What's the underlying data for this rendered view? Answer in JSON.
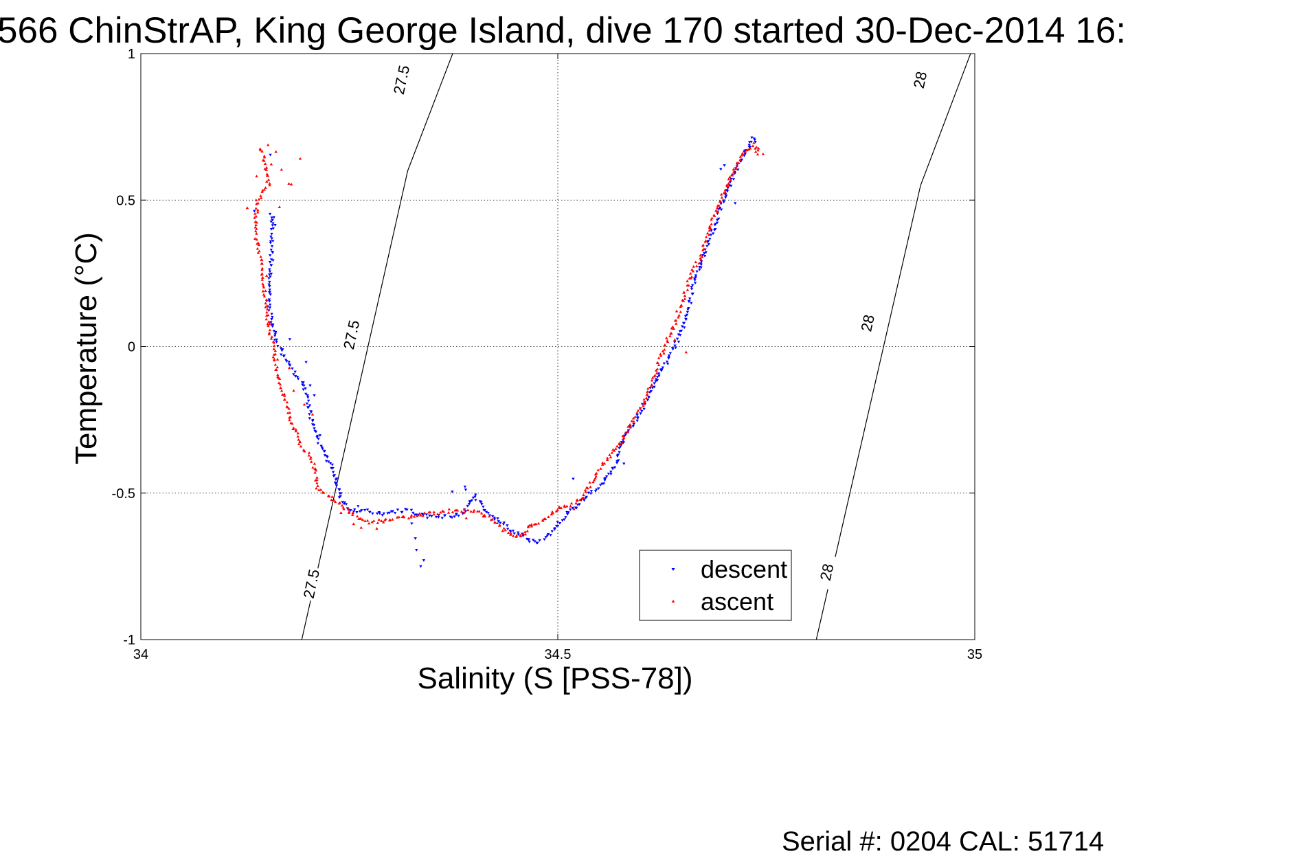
{
  "title": "566 ChinStrAP, King George Island, dive 170 started 30-Dec-2014 16:",
  "footer": "Serial #: 0204  CAL: 51714",
  "chart_data": {
    "type": "scatter",
    "title": "566 ChinStrAP, King George Island, dive 170 started 30-Dec-2014 16:",
    "xlabel": "Salinity (S [PSS-78])",
    "ylabel": "Temperature (°C)",
    "xlim": [
      34,
      35
    ],
    "ylim": [
      -1,
      1
    ],
    "xticks": [
      34,
      34.5,
      35
    ],
    "xtick_labels": [
      "34",
      "34.5",
      "35"
    ],
    "yticks": [
      -1,
      -0.5,
      0,
      0.5,
      1
    ],
    "ytick_labels": [
      "-1",
      "-0.5",
      "0",
      "0.5",
      "1"
    ],
    "grid": true,
    "legend_position": "bottom-right",
    "colors": {
      "descent": "#0000ff",
      "ascent": "#ff0000"
    },
    "contours": [
      {
        "label": "27.5",
        "color": "#000000",
        "points": [
          [
            34.193,
            -1.0
          ],
          [
            34.32,
            0.6
          ],
          [
            34.374,
            1.0
          ]
        ],
        "label_positions": [
          [
            34.205,
            -0.81
          ],
          [
            34.253,
            0.04
          ],
          [
            34.313,
            0.91
          ]
        ]
      },
      {
        "label": "28",
        "color": "#000000",
        "points": [
          [
            34.81,
            -1.0
          ],
          [
            34.935,
            0.55
          ],
          [
            34.995,
            1.0
          ]
        ],
        "label_positions": [
          [
            34.823,
            -0.77
          ],
          [
            34.872,
            0.08
          ],
          [
            34.935,
            0.91
          ]
        ]
      }
    ],
    "series": [
      {
        "name": "descent",
        "marker": "triangle-down",
        "color": "#0000ff",
        "path": [
          [
            34.157,
            0.45
          ],
          [
            34.157,
            0.38
          ],
          [
            34.157,
            0.3
          ],
          [
            34.155,
            0.25
          ],
          [
            34.153,
            0.15
          ],
          [
            34.157,
            0.08
          ],
          [
            34.163,
            0.02
          ],
          [
            34.175,
            -0.05
          ],
          [
            34.195,
            -0.13
          ],
          [
            34.205,
            -0.25
          ],
          [
            34.212,
            -0.32
          ],
          [
            34.22,
            -0.37
          ],
          [
            34.232,
            -0.42
          ],
          [
            34.235,
            -0.48
          ],
          [
            34.24,
            -0.52
          ],
          [
            34.252,
            -0.56
          ],
          [
            34.268,
            -0.56
          ],
          [
            34.29,
            -0.57
          ],
          [
            34.318,
            -0.56
          ],
          [
            34.345,
            -0.58
          ],
          [
            34.372,
            -0.58
          ],
          [
            34.385,
            -0.57
          ],
          [
            34.393,
            -0.54
          ],
          [
            34.4,
            -0.51
          ],
          [
            34.413,
            -0.56
          ],
          [
            34.432,
            -0.6
          ],
          [
            34.445,
            -0.63
          ],
          [
            34.456,
            -0.64
          ],
          [
            34.463,
            -0.66
          ],
          [
            34.475,
            -0.67
          ],
          [
            34.492,
            -0.64
          ],
          [
            34.5,
            -0.61
          ],
          [
            34.508,
            -0.58
          ],
          [
            34.525,
            -0.54
          ],
          [
            34.54,
            -0.5
          ],
          [
            34.555,
            -0.46
          ],
          [
            34.565,
            -0.43
          ],
          [
            34.572,
            -0.38
          ],
          [
            34.58,
            -0.3
          ],
          [
            34.595,
            -0.25
          ],
          [
            34.61,
            -0.16
          ],
          [
            34.625,
            -0.08
          ],
          [
            34.64,
            0.0
          ],
          [
            34.65,
            0.07
          ],
          [
            34.657,
            0.12
          ],
          [
            34.662,
            0.2
          ],
          [
            34.672,
            0.28
          ],
          [
            34.68,
            0.35
          ],
          [
            34.69,
            0.42
          ],
          [
            34.698,
            0.5
          ],
          [
            34.708,
            0.56
          ],
          [
            34.718,
            0.63
          ],
          [
            34.728,
            0.68
          ],
          [
            34.733,
            0.71
          ],
          [
            34.738,
            0.7
          ]
        ],
        "points": [
          [
            34.157,
            0.66
          ],
          [
            34.137,
            0.46
          ],
          [
            34.158,
            0.44
          ],
          [
            34.16,
            0.42
          ],
          [
            34.18,
            0.02
          ],
          [
            34.198,
            -0.05
          ],
          [
            34.203,
            -0.13
          ],
          [
            34.21,
            -0.17
          ],
          [
            34.215,
            -0.3
          ],
          [
            34.262,
            -0.55
          ],
          [
            34.325,
            -0.6
          ],
          [
            34.328,
            -0.65
          ],
          [
            34.33,
            -0.7
          ],
          [
            34.335,
            -0.75
          ],
          [
            34.34,
            -0.73
          ],
          [
            34.375,
            -0.49
          ],
          [
            34.388,
            -0.48
          ],
          [
            34.39,
            -0.49
          ],
          [
            34.62,
            -0.12
          ],
          [
            34.695,
            0.6
          ],
          [
            34.7,
            0.62
          ],
          [
            34.712,
            0.49
          ],
          [
            34.58,
            -0.4
          ],
          [
            34.52,
            -0.45
          ]
        ]
      },
      {
        "name": "ascent",
        "marker": "triangle-up",
        "color": "#ff0000",
        "path": [
          [
            34.145,
            0.68
          ],
          [
            34.15,
            0.6
          ],
          [
            34.153,
            0.55
          ],
          [
            34.14,
            0.5
          ],
          [
            34.137,
            0.42
          ],
          [
            34.14,
            0.35
          ],
          [
            34.145,
            0.27
          ],
          [
            34.148,
            0.2
          ],
          [
            34.15,
            0.12
          ],
          [
            34.155,
            0.05
          ],
          [
            34.16,
            -0.02
          ],
          [
            34.163,
            -0.1
          ],
          [
            34.172,
            -0.17
          ],
          [
            34.18,
            -0.25
          ],
          [
            34.19,
            -0.33
          ],
          [
            34.203,
            -0.38
          ],
          [
            34.21,
            -0.42
          ],
          [
            34.212,
            -0.48
          ],
          [
            34.23,
            -0.52
          ],
          [
            34.245,
            -0.55
          ],
          [
            34.258,
            -0.58
          ],
          [
            34.275,
            -0.6
          ],
          [
            34.298,
            -0.59
          ],
          [
            34.32,
            -0.58
          ],
          [
            34.345,
            -0.57
          ],
          [
            34.37,
            -0.56
          ],
          [
            34.395,
            -0.56
          ],
          [
            34.41,
            -0.57
          ],
          [
            34.425,
            -0.6
          ],
          [
            34.438,
            -0.63
          ],
          [
            34.45,
            -0.65
          ],
          [
            34.458,
            -0.64
          ],
          [
            34.468,
            -0.61
          ],
          [
            34.485,
            -0.59
          ],
          [
            34.5,
            -0.55
          ],
          [
            34.515,
            -0.54
          ],
          [
            34.53,
            -0.52
          ],
          [
            34.537,
            -0.48
          ],
          [
            34.545,
            -0.44
          ],
          [
            34.56,
            -0.38
          ],
          [
            34.575,
            -0.33
          ],
          [
            34.59,
            -0.25
          ],
          [
            34.605,
            -0.18
          ],
          [
            34.618,
            -0.08
          ],
          [
            34.628,
            0.0
          ],
          [
            34.64,
            0.08
          ],
          [
            34.65,
            0.16
          ],
          [
            34.66,
            0.25
          ],
          [
            34.672,
            0.31
          ],
          [
            34.682,
            0.4
          ],
          [
            34.692,
            0.47
          ],
          [
            34.7,
            0.54
          ],
          [
            34.71,
            0.6
          ],
          [
            34.72,
            0.65
          ],
          [
            34.73,
            0.68
          ],
          [
            34.738,
            0.68
          ],
          [
            34.74,
            0.66
          ]
        ],
        "points": [
          [
            34.152,
            0.69
          ],
          [
            34.16,
            0.66
          ],
          [
            34.155,
            0.62
          ],
          [
            34.17,
            0.61
          ],
          [
            34.178,
            0.56
          ],
          [
            34.182,
            0.55
          ],
          [
            34.168,
            0.48
          ],
          [
            34.19,
            0.64
          ],
          [
            34.128,
            0.47
          ],
          [
            34.14,
            0.58
          ],
          [
            34.15,
            0.24
          ],
          [
            34.165,
            -0.04
          ],
          [
            34.178,
            -0.07
          ],
          [
            34.185,
            -0.15
          ],
          [
            34.195,
            -0.2
          ],
          [
            34.205,
            -0.23
          ],
          [
            34.238,
            -0.57
          ],
          [
            34.255,
            -0.6
          ],
          [
            34.265,
            -0.62
          ],
          [
            34.285,
            -0.62
          ],
          [
            34.39,
            -0.58
          ],
          [
            34.41,
            -0.58
          ],
          [
            34.47,
            -0.61
          ],
          [
            34.52,
            -0.55
          ],
          [
            34.64,
            0.02
          ],
          [
            34.655,
            -0.02
          ],
          [
            34.705,
            0.58
          ],
          [
            34.735,
            0.7
          ],
          [
            34.742,
            0.68
          ],
          [
            34.745,
            0.66
          ]
        ]
      }
    ]
  }
}
